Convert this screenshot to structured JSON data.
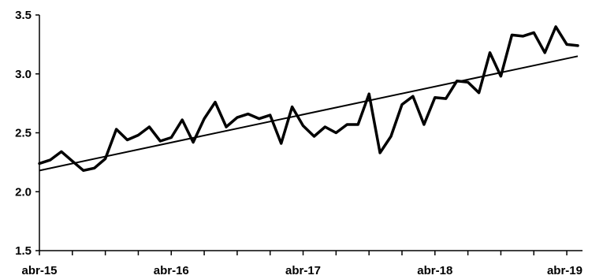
{
  "chart_data": {
    "type": "line",
    "title": "",
    "xlabel": "",
    "ylabel": "",
    "ylim": [
      1.5,
      3.5
    ],
    "yticks": [
      "1.5",
      "2.0",
      "2.5",
      "3.0",
      "3.5"
    ],
    "xtick_labels": [
      "abr-15",
      "abr-16",
      "abr-17",
      "abr-18",
      "abr-19"
    ],
    "x_start": "abr-15",
    "x_step": "month",
    "grid": false,
    "legend": "none",
    "series": [
      {
        "style": "thick",
        "color": "#000000",
        "values": [
          2.24,
          2.27,
          2.34,
          2.26,
          2.18,
          2.2,
          2.28,
          2.53,
          2.44,
          2.48,
          2.55,
          2.43,
          2.46,
          2.61,
          2.42,
          2.62,
          2.76,
          2.55,
          2.63,
          2.66,
          2.62,
          2.65,
          2.41,
          2.72,
          2.56,
          2.47,
          2.55,
          2.5,
          2.57,
          2.57,
          2.83,
          2.33,
          2.47,
          2.74,
          2.81,
          2.57,
          2.8,
          2.79,
          2.94,
          2.93,
          2.84,
          3.18,
          2.98,
          3.33,
          3.32,
          3.35,
          3.18,
          3.4,
          3.25,
          3.24
        ]
      },
      {
        "style": "thin",
        "color": "#000000",
        "values": [
          2.18,
          3.15
        ]
      }
    ]
  }
}
